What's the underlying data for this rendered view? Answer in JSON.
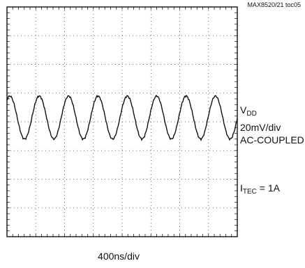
{
  "figure_id": "MAX8520/21 toc05",
  "labels": {
    "vdd_main": "V",
    "vdd_sub": "DD",
    "scale": "20mV/div",
    "coupling": "AC-COUPLED",
    "itec_main": "I",
    "itec_sub": "TEC",
    "itec_value": " = 1A",
    "timebase": "400ns/div"
  },
  "chart_data": {
    "type": "line",
    "title": "",
    "xlabel": "400ns/div",
    "ylabel": "",
    "grid": true,
    "divisions": {
      "x": 8,
      "y": 8
    },
    "series": [
      {
        "name": "VDD",
        "description_values": "sinusoidal ripple",
        "amplitude_div": 0.75,
        "center_div_from_top": 3.85,
        "period_div": 1.02,
        "phase_div": 0.1,
        "cycles_visible": 8
      }
    ]
  }
}
